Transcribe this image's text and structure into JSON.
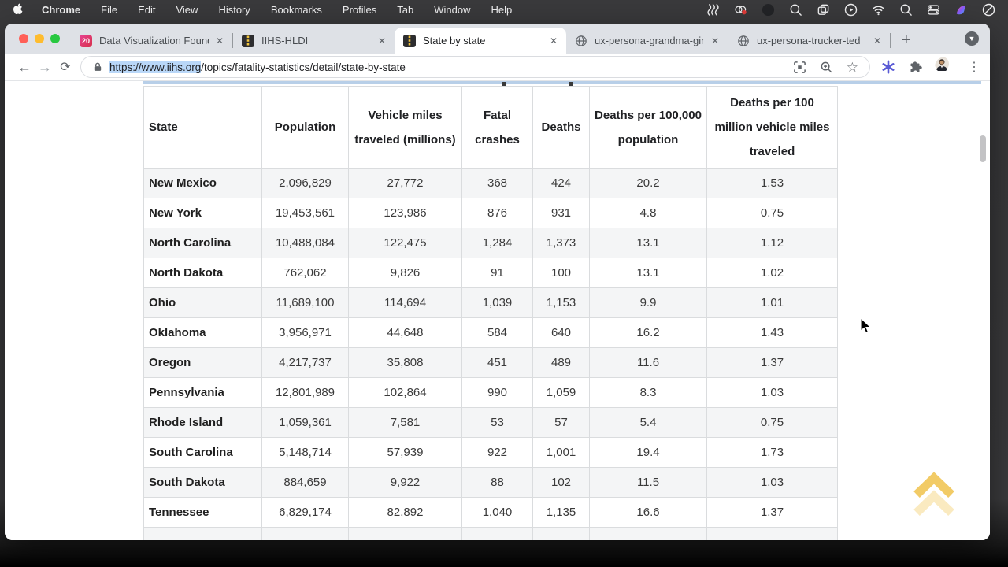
{
  "menubar": {
    "items": [
      "Chrome",
      "File",
      "Edit",
      "View",
      "History",
      "Bookmarks",
      "Profiles",
      "Tab",
      "Window",
      "Help"
    ],
    "status_icons": [
      "waves-icon",
      "creative-cloud-icon",
      "dimmed-app-icon",
      "zoom-icon",
      "windows-copy-icon",
      "play-circle-icon",
      "wifi-icon",
      "spotlight-search-icon",
      "control-center-icon",
      "colorful-app-icon",
      "do-not-disturb-icon"
    ]
  },
  "tabs": [
    {
      "label": "Data Visualization Founda",
      "favicon": "badge-20",
      "active": false
    },
    {
      "label": "IIHS-HLDI",
      "favicon": "road",
      "active": false
    },
    {
      "label": "State by state",
      "favicon": "road",
      "active": true
    },
    {
      "label": "ux-persona-grandma-gin",
      "favicon": "globe",
      "active": false
    },
    {
      "label": "ux-persona-trucker-ted",
      "favicon": "globe",
      "active": false
    }
  ],
  "badge_20": "20",
  "icons": {
    "close": "✕",
    "new_tab_plus": "+",
    "tab_menu_chevron": "▼",
    "back_arrow": "←",
    "forward_arrow": "→",
    "reload": "⟳",
    "bookmark_star": "☆",
    "kebab_menu": "⋮"
  },
  "toolbar": {
    "url_selected": "https://www.iihs.org",
    "url_rest": "/topics/fatality-statistics/detail/state-by-state"
  },
  "table": {
    "headers": [
      "State",
      "Population",
      "Vehicle miles traveled (millions)",
      "Fatal crashes",
      "Deaths",
      "Deaths per 100,000 population",
      "Deaths per 100 million vehicle miles traveled"
    ],
    "rows": [
      [
        "New Mexico",
        "2,096,829",
        "27,772",
        "368",
        "424",
        "20.2",
        "1.53"
      ],
      [
        "New York",
        "19,453,561",
        "123,986",
        "876",
        "931",
        "4.8",
        "0.75"
      ],
      [
        "North Carolina",
        "10,488,084",
        "122,475",
        "1,284",
        "1,373",
        "13.1",
        "1.12"
      ],
      [
        "North Dakota",
        "762,062",
        "9,826",
        "91",
        "100",
        "13.1",
        "1.02"
      ],
      [
        "Ohio",
        "11,689,100",
        "114,694",
        "1,039",
        "1,153",
        "9.9",
        "1.01"
      ],
      [
        "Oklahoma",
        "3,956,971",
        "44,648",
        "584",
        "640",
        "16.2",
        "1.43"
      ],
      [
        "Oregon",
        "4,217,737",
        "35,808",
        "451",
        "489",
        "11.6",
        "1.37"
      ],
      [
        "Pennsylvania",
        "12,801,989",
        "102,864",
        "990",
        "1,059",
        "8.3",
        "1.03"
      ],
      [
        "Rhode Island",
        "1,059,361",
        "7,581",
        "53",
        "57",
        "5.4",
        "0.75"
      ],
      [
        "South Carolina",
        "5,148,714",
        "57,939",
        "922",
        "1,001",
        "19.4",
        "1.73"
      ],
      [
        "South Dakota",
        "884,659",
        "9,922",
        "88",
        "102",
        "11.5",
        "1.03"
      ],
      [
        "Tennessee",
        "6,829,174",
        "82,892",
        "1,040",
        "1,135",
        "16.6",
        "1.37"
      ]
    ]
  },
  "colors": {
    "selection_highlight": "#b9d7f8",
    "row_stripe": "#f4f5f6",
    "scroll_top_gold": "#f0c24b",
    "tab_road_yellow": "#f2c53d",
    "traffic_red": "#ff5f57",
    "traffic_yellow": "#febc2e",
    "traffic_green": "#28c840",
    "extension_purple": "#5a5bd5"
  }
}
